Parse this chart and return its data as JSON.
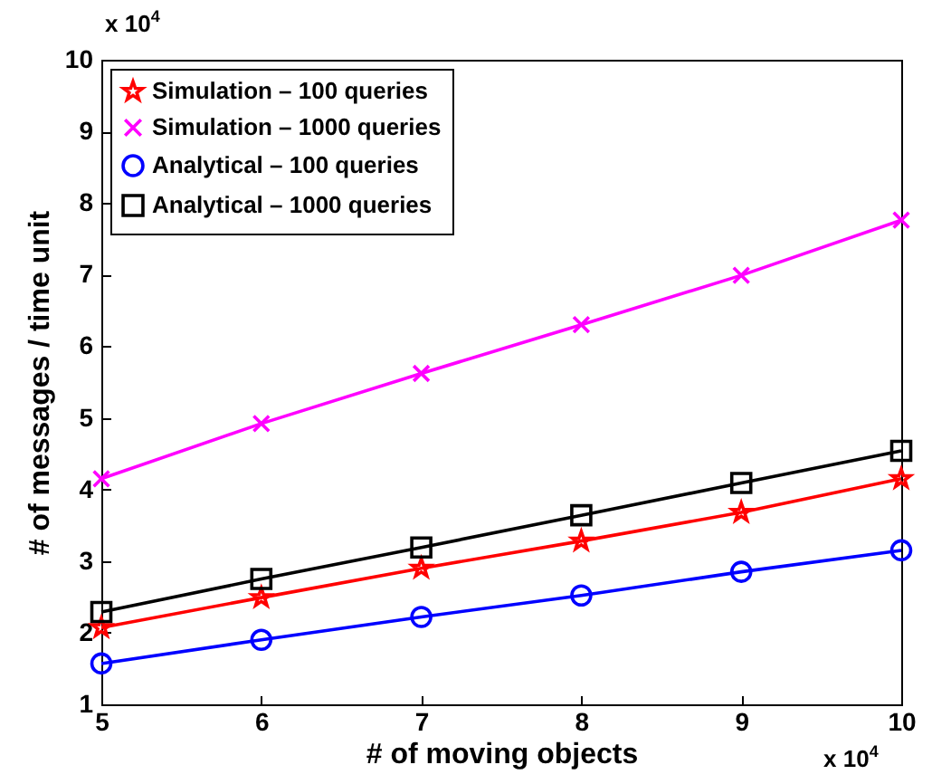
{
  "chart_data": {
    "type": "line",
    "xlabel": "# of moving objects",
    "ylabel": "# of messages / time unit",
    "x": [
      5,
      6,
      7,
      8,
      9,
      10
    ],
    "xlim": [
      5,
      10
    ],
    "xticks": [
      5,
      6,
      7,
      8,
      9,
      10
    ],
    "ylim": [
      1,
      10
    ],
    "yticks": [
      1,
      2,
      3,
      4,
      5,
      6,
      7,
      8,
      9,
      10
    ],
    "annotations": [
      "x 10$^{4}$",
      "x 10$^{4}$"
    ],
    "legend": "top left",
    "grid": false,
    "line_style": "solid",
    "series": [
      {
        "name": "Simulation – 100 queries",
        "color": "#ff0000",
        "marker": "star",
        "values": [
          2.07,
          2.49,
          2.9,
          3.28,
          3.68,
          4.15
        ]
      },
      {
        "name": "Simulation – 1000 queries",
        "color": "#ff00ff",
        "marker": "cross",
        "values": [
          4.15,
          4.92,
          5.62,
          6.3,
          6.99,
          7.76
        ]
      },
      {
        "name": "Analytical – 100 queries",
        "color": "#0000ff",
        "marker": "circle",
        "values": [
          1.57,
          1.9,
          2.22,
          2.52,
          2.85,
          3.15
        ]
      },
      {
        "name": "Analytical – 1000 queries",
        "color": "#000000",
        "marker": "square",
        "values": [
          2.29,
          2.75,
          3.19,
          3.64,
          4.09,
          4.54
        ]
      }
    ]
  }
}
